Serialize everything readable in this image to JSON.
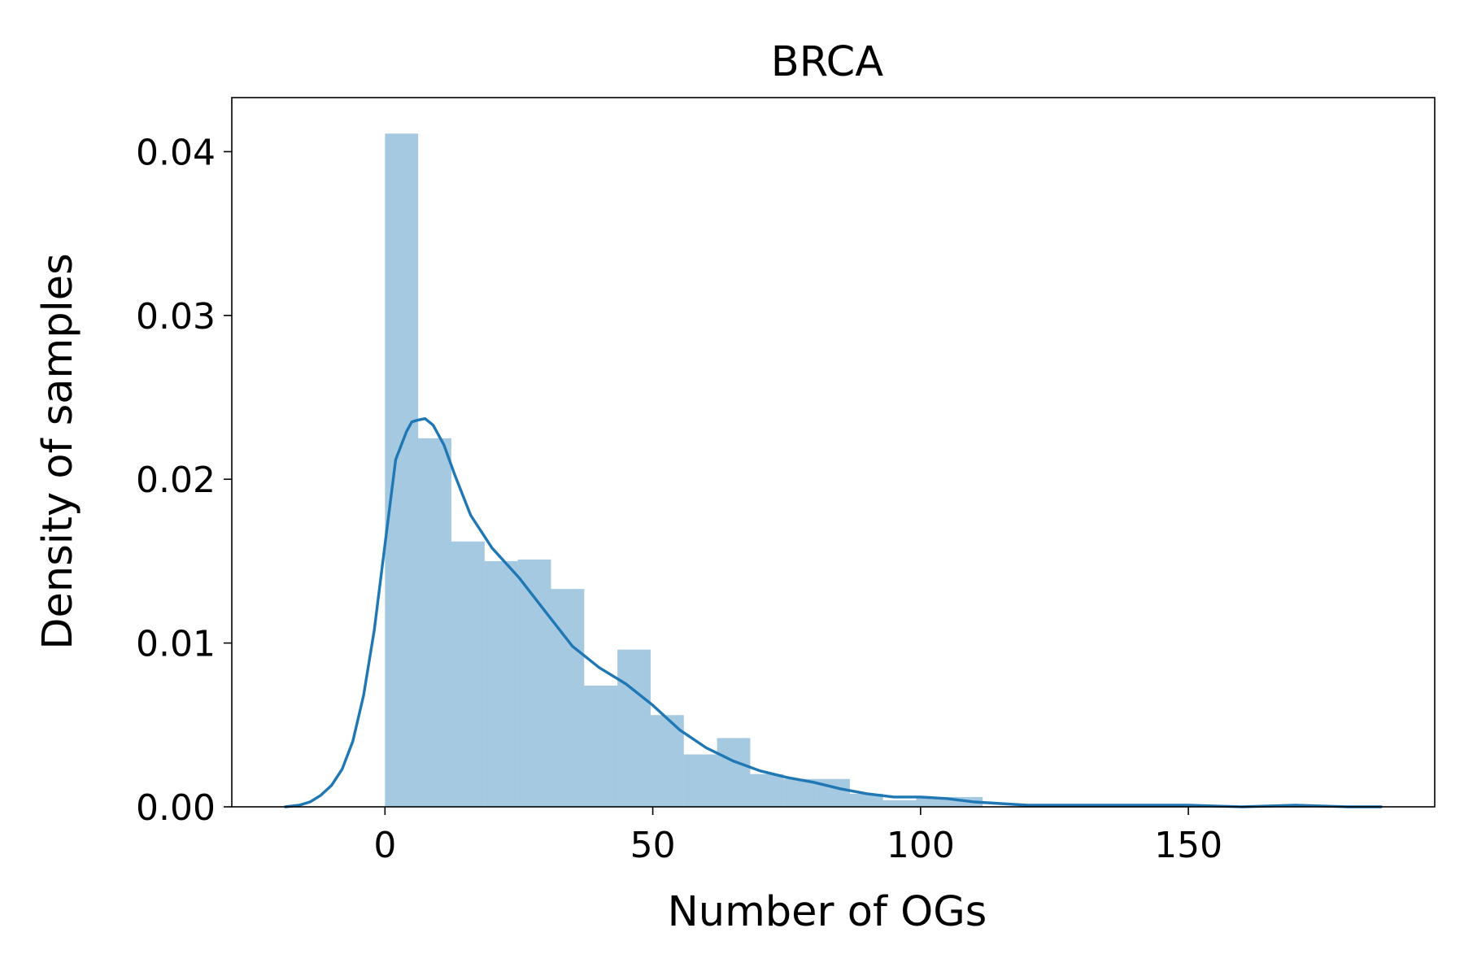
{
  "chart_data": {
    "type": "bar",
    "title": "BRCA",
    "xlabel": "Number of OGs",
    "ylabel": "Density of samples",
    "xlim": [
      -28.6,
      196
    ],
    "ylim": [
      0,
      0.0433
    ],
    "xticks": [
      0,
      50,
      100,
      150
    ],
    "xtick_labels": [
      "0",
      "50",
      "100",
      "150"
    ],
    "yticks": [
      0,
      0.01,
      0.02,
      0.03,
      0.04
    ],
    "ytick_labels": [
      "0.00",
      "0.01",
      "0.02",
      "0.03",
      "0.04"
    ],
    "grid": false,
    "legend": "none",
    "colors": {
      "bars": "#1f77b4",
      "bar_alpha": 0.4,
      "kde": "#1f77b4"
    },
    "histogram": {
      "bin_edges": [
        0,
        6.2,
        12.4,
        18.6,
        24.8,
        31.0,
        37.2,
        43.4,
        49.6,
        55.8,
        62.0,
        68.2,
        74.4,
        80.6,
        86.8,
        93.0,
        99.2,
        105.4,
        111.6
      ],
      "values": [
        0.0411,
        0.0225,
        0.0162,
        0.015,
        0.0151,
        0.0133,
        0.0074,
        0.0096,
        0.0056,
        0.0032,
        0.0042,
        0.002,
        0.0017,
        0.0017,
        0.0008,
        0.0004,
        0.0006,
        0.0006
      ]
    },
    "kde": {
      "x": [
        -18.6,
        -16,
        -14,
        -12,
        -10,
        -8,
        -6,
        -4,
        -2,
        0,
        2,
        4,
        5,
        6,
        7.5,
        9,
        11,
        13,
        16,
        20,
        25,
        30,
        35,
        40,
        45,
        50,
        55,
        60,
        65,
        70,
        75,
        80,
        85,
        90,
        95,
        100,
        105,
        110,
        115,
        120,
        130,
        140,
        150,
        160,
        170,
        180,
        186
      ],
      "y": [
        0,
        0.0001,
        0.0003,
        0.0007,
        0.0013,
        0.0023,
        0.004,
        0.0068,
        0.0108,
        0.016,
        0.0212,
        0.0229,
        0.0235,
        0.0236,
        0.0237,
        0.0233,
        0.0221,
        0.0203,
        0.0178,
        0.0158,
        0.014,
        0.0119,
        0.0098,
        0.0085,
        0.0075,
        0.0062,
        0.0047,
        0.0036,
        0.0028,
        0.0022,
        0.0018,
        0.0015,
        0.0011,
        0.0008,
        0.0006,
        0.0006,
        0.0005,
        0.0003,
        0.0002,
        0.0001,
        0.0001,
        0.0001,
        0.0001,
        0.0,
        0.0001,
        0.0,
        0.0
      ]
    }
  }
}
